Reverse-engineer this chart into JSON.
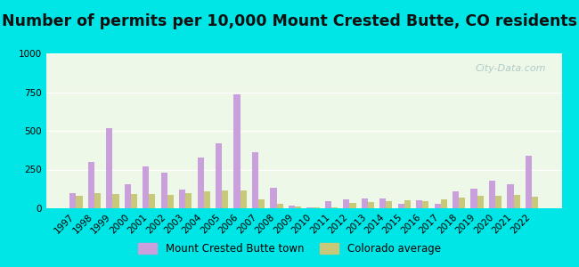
{
  "title": "Number of permits per 10,000 Mount Crested Butte, CO residents",
  "years": [
    1997,
    1998,
    1999,
    2000,
    2001,
    2002,
    2003,
    2004,
    2005,
    2006,
    2007,
    2008,
    2009,
    2010,
    2011,
    2012,
    2013,
    2014,
    2015,
    2016,
    2017,
    2018,
    2019,
    2020,
    2021,
    2022
  ],
  "town_values": [
    100,
    300,
    520,
    155,
    270,
    230,
    120,
    330,
    420,
    735,
    360,
    130,
    20,
    5,
    45,
    60,
    65,
    65,
    30,
    50,
    30,
    110,
    125,
    180,
    155,
    340
  ],
  "co_values": [
    80,
    100,
    90,
    90,
    90,
    85,
    100,
    110,
    115,
    115,
    60,
    30,
    10,
    5,
    5,
    35,
    40,
    45,
    50,
    45,
    55,
    70,
    80,
    80,
    85,
    75
  ],
  "town_color": "#c9a0dc",
  "co_color": "#c8c87a",
  "ylim": [
    0,
    1000
  ],
  "yticks": [
    0,
    250,
    500,
    750,
    1000
  ],
  "background_outer": "#00e5e5",
  "background_inner": "#eef8e8",
  "watermark": "City-Data.com",
  "legend_town": "Mount Crested Butte town",
  "legend_co": "Colorado average",
  "bar_width": 0.35,
  "title_fontsize": 12.5,
  "tick_fontsize": 7.5
}
